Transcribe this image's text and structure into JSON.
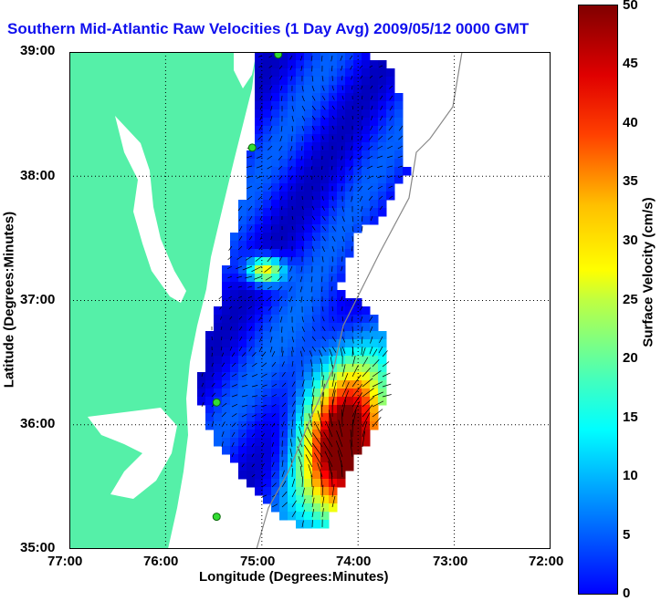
{
  "title": "Southern Mid-Atlantic Raw Velocities (1 Day Avg) 2009/05/12 0000 GMT",
  "x_label": "Longitude (Degrees:Minutes)",
  "y_label": "Latitude (Degrees:Minutes)",
  "x_ticks": [
    "77:00",
    "76:00",
    "75:00",
    "74:00",
    "73:00",
    "72:00"
  ],
  "y_ticks": [
    "39:00",
    "38:00",
    "37:00",
    "36:00",
    "35:00"
  ],
  "colorbar": {
    "label": "Surface Velocity (cm/s)",
    "ticks": [
      "50",
      "45",
      "40",
      "35",
      "30",
      "25",
      "20",
      "15",
      "10",
      "5",
      "0"
    ],
    "min": 0,
    "max": 50
  },
  "colors": {
    "title": "#1010ee",
    "land": "#55f0a8",
    "station": "#33dd33",
    "arrow": "#000000",
    "grid": "#000000"
  },
  "map": {
    "lon_range": [
      -77,
      -72
    ],
    "lat_range": [
      35,
      39
    ],
    "grid": "dotted",
    "stations_lonlat": [
      [
        -74.83,
        38.98
      ],
      [
        -75.1,
        38.23
      ],
      [
        -75.47,
        36.18
      ],
      [
        -75.47,
        35.26
      ]
    ]
  }
}
